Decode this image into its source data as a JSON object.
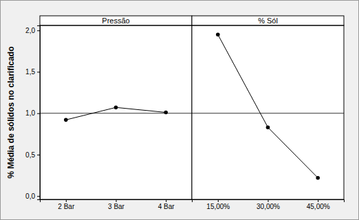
{
  "chart_data": {
    "type": "line",
    "y_label": "% Média de sólidos no clarificado",
    "ylim": [
      -0.04,
      2.06
    ],
    "yticks": [
      {
        "value": 0,
        "label": "0,0"
      },
      {
        "value": 0.5,
        "label": "0,5"
      },
      {
        "value": 1,
        "label": "1,0"
      },
      {
        "value": 1.5,
        "label": "1,5"
      },
      {
        "value": 2,
        "label": "2,0"
      }
    ],
    "mean": 1.0,
    "color": "#000000",
    "marker": "circle",
    "panels": [
      {
        "title": "Pressão",
        "categories": [
          "2 Bar",
          "3 Bar",
          "4 Bar"
        ],
        "values": [
          0.92,
          1.07,
          1.01
        ]
      },
      {
        "title": "% Sól",
        "categories": [
          "15,00%",
          "30,00%",
          "45,00%"
        ],
        "values": [
          1.95,
          0.83,
          0.22
        ]
      }
    ]
  }
}
